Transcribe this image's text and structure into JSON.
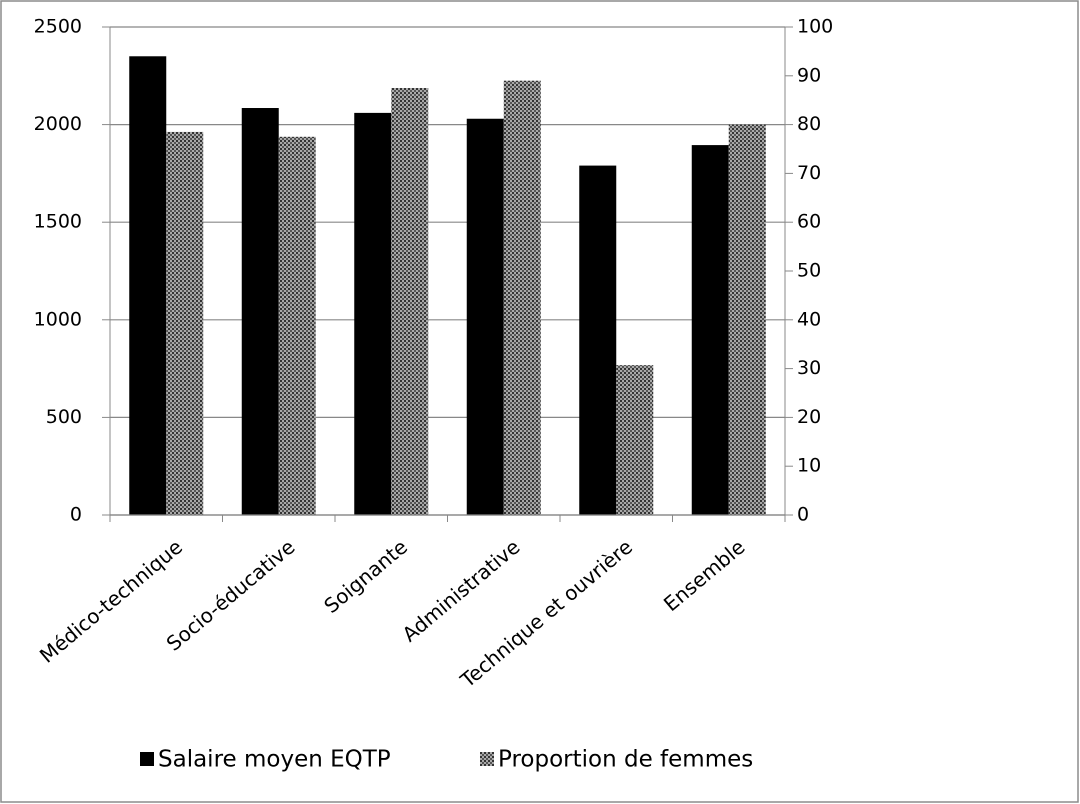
{
  "chart_data": {
    "type": "bar",
    "categories": [
      "Médico-technique",
      "Socio-éducative",
      "Soignante",
      "Administrative",
      "Technique et ouvrière",
      "Ensemble"
    ],
    "series": [
      {
        "name": "Salaire moyen EQTP",
        "color": "#000000",
        "values": [
          2350,
          2085,
          2060,
          2030,
          1790,
          1895
        ]
      },
      {
        "name": "Proportion de femmes",
        "color": "#a8a8a8",
        "axis": "y2",
        "values": [
          78.5,
          77.5,
          87.5,
          89,
          30.7,
          80
        ]
      }
    ],
    "ylim": [
      0,
      2500
    ],
    "yticks": [
      0,
      500,
      1000,
      1500,
      2000,
      2500
    ],
    "y2lim": [
      0,
      100
    ],
    "y2ticks": [
      0,
      10,
      20,
      30,
      40,
      50,
      60,
      70,
      80,
      90,
      100
    ],
    "grid": true
  }
}
